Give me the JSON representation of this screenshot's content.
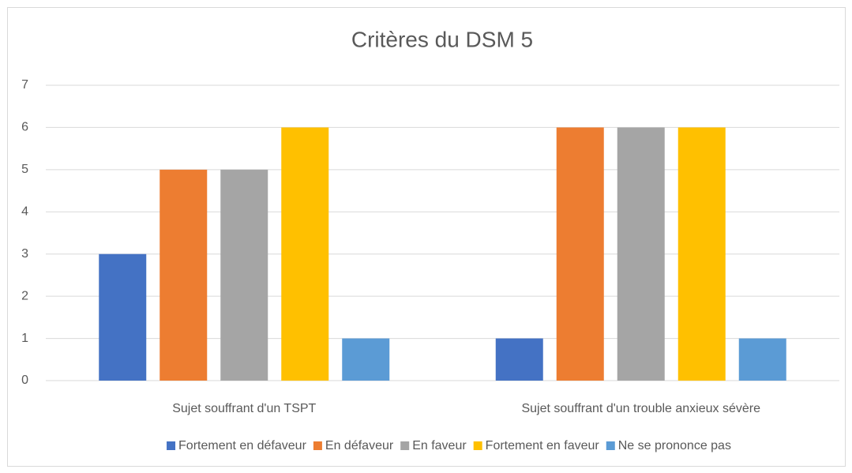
{
  "chart_data": {
    "type": "bar",
    "title": "Critères du DSM 5",
    "categories": [
      "Sujet souffrant d'un TSPT",
      "Sujet souffrant d'un trouble anxieux sévère"
    ],
    "series": [
      {
        "name": "Fortement en défaveur",
        "color": "#4472c4",
        "values": [
          3,
          1
        ]
      },
      {
        "name": "En défaveur",
        "color": "#ed7d31",
        "values": [
          5,
          6
        ]
      },
      {
        "name": "En faveur",
        "color": "#a5a5a5",
        "values": [
          5,
          6
        ]
      },
      {
        "name": "Fortement en faveur",
        "color": "#ffc000",
        "values": [
          6,
          6
        ]
      },
      {
        "name": "Ne se prononce pas",
        "color": "#5b9bd5",
        "values": [
          1,
          1
        ]
      }
    ],
    "ylim": [
      0,
      7
    ],
    "yticks": [
      0,
      1,
      2,
      3,
      4,
      5,
      6,
      7
    ],
    "grid": true,
    "legend": "bottom"
  }
}
